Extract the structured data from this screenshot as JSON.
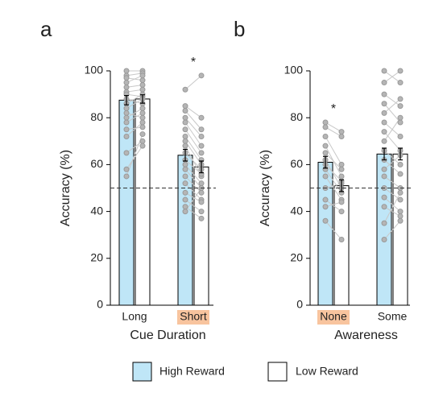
{
  "chart_data": [
    {
      "type": "bar",
      "panel_label": "a",
      "xlabel": "Cue Duration",
      "ylabel": "Accuracy (%)",
      "categories": [
        "Long",
        "Short"
      ],
      "highlight": [
        1
      ],
      "significance": [
        null,
        "*"
      ],
      "series": [
        {
          "name": "High Reward",
          "color": "#bfe6f7",
          "values": [
            87.5,
            64
          ],
          "errors": [
            2,
            2.5
          ]
        },
        {
          "name": "Low Reward",
          "color": "#ffffff",
          "values": [
            88,
            59
          ],
          "errors": [
            1.8,
            2.5
          ]
        }
      ],
      "subjects": [
        [
          [
            100,
            100
          ],
          [
            98,
            99
          ],
          [
            97,
            96
          ],
          [
            95,
            98
          ],
          [
            93,
            94
          ],
          [
            91,
            92
          ],
          [
            90,
            89
          ],
          [
            88,
            86
          ],
          [
            86,
            90
          ],
          [
            84,
            88
          ],
          [
            82,
            80
          ],
          [
            80,
            84
          ],
          [
            78,
            82
          ],
          [
            75,
            76
          ],
          [
            72,
            78
          ],
          [
            65,
            70
          ],
          [
            58,
            68
          ],
          [
            55,
            73
          ]
        ],
        [
          [
            92,
            98
          ],
          [
            85,
            80
          ],
          [
            83,
            75
          ],
          [
            80,
            72
          ],
          [
            78,
            68
          ],
          [
            75,
            65
          ],
          [
            72,
            62
          ],
          [
            70,
            60
          ],
          [
            68,
            55
          ],
          [
            65,
            58
          ],
          [
            62,
            56
          ],
          [
            60,
            52
          ],
          [
            58,
            50
          ],
          [
            55,
            48
          ],
          [
            52,
            45
          ],
          [
            48,
            44
          ],
          [
            45,
            40
          ],
          [
            42,
            37
          ],
          [
            40,
            50
          ]
        ]
      ],
      "reference_line": 50,
      "ylim": [
        0,
        100
      ],
      "yticks": [
        0,
        20,
        40,
        60,
        80,
        100
      ]
    },
    {
      "type": "bar",
      "panel_label": "b",
      "xlabel": "Awareness",
      "ylabel": "Accuracy (%)",
      "categories": [
        "None",
        "Some"
      ],
      "highlight": [
        0
      ],
      "significance": [
        "*",
        null
      ],
      "series": [
        {
          "name": "High Reward",
          "color": "#bfe6f7",
          "values": [
            61,
            64.5
          ],
          "errors": [
            2.5,
            2.5
          ]
        },
        {
          "name": "Low Reward",
          "color": "#ffffff",
          "values": [
            51,
            64.5
          ],
          "errors": [
            2.5,
            2.5
          ]
        }
      ],
      "subjects": [
        [
          [
            78,
            74
          ],
          [
            76,
            72
          ],
          [
            72,
            60
          ],
          [
            68,
            55
          ],
          [
            65,
            58
          ],
          [
            62,
            50
          ],
          [
            60,
            53
          ],
          [
            58,
            48
          ],
          [
            55,
            45
          ],
          [
            50,
            52
          ],
          [
            45,
            40
          ],
          [
            42,
            44
          ],
          [
            36,
            28
          ]
        ],
        [
          [
            100,
            95
          ],
          [
            95,
            100
          ],
          [
            90,
            85
          ],
          [
            86,
            78
          ],
          [
            82,
            88
          ],
          [
            78,
            72
          ],
          [
            74,
            66
          ],
          [
            70,
            80
          ],
          [
            66,
            60
          ],
          [
            62,
            56
          ],
          [
            58,
            64
          ],
          [
            55,
            50
          ],
          [
            50,
            45
          ],
          [
            46,
            40
          ],
          [
            42,
            38
          ],
          [
            35,
            48
          ],
          [
            28,
            36
          ]
        ]
      ],
      "reference_line": 50,
      "ylim": [
        0,
        100
      ],
      "yticks": [
        0,
        20,
        40,
        60,
        80,
        100
      ]
    }
  ]
}
